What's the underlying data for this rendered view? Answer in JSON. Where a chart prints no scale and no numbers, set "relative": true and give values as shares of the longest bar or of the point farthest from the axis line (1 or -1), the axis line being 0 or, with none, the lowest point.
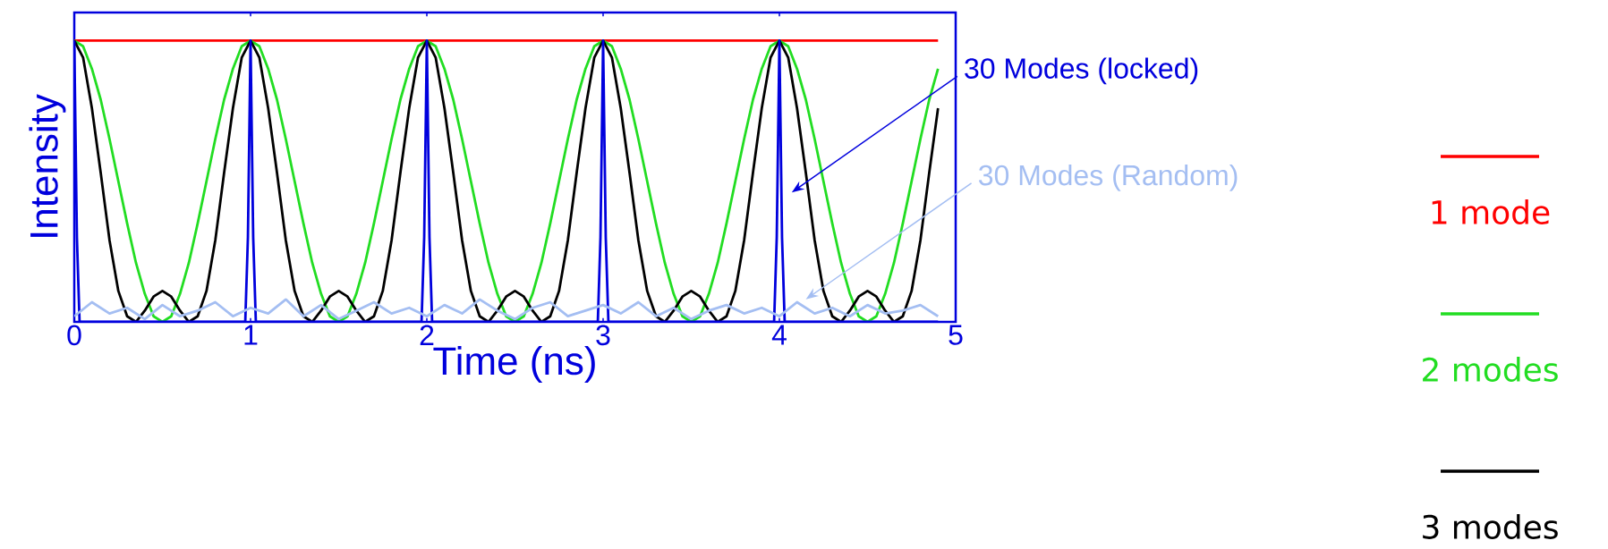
{
  "chart_data": {
    "type": "line",
    "xlabel": "Time (ns)",
    "ylabel": "Intensity",
    "relative": true,
    "xlim": [
      0,
      5
    ],
    "xticks": [
      0,
      1,
      2,
      3,
      4,
      5
    ],
    "legend": "right",
    "x": [
      0,
      0.05,
      0.1,
      0.15,
      0.2,
      0.25,
      0.3,
      0.35,
      0.4,
      0.45,
      0.5,
      0.55,
      0.6,
      0.65,
      0.7,
      0.75,
      0.8,
      0.85,
      0.9,
      0.95,
      1,
      1.05,
      1.1,
      1.15,
      1.2,
      1.25,
      1.3,
      1.35,
      1.4,
      1.45,
      1.5,
      1.55,
      1.6,
      1.65,
      1.7,
      1.75,
      1.8,
      1.85,
      1.9,
      1.95,
      2,
      2.05,
      2.1,
      2.15,
      2.2,
      2.25,
      2.3,
      2.35,
      2.4,
      2.45,
      2.5,
      2.55,
      2.6,
      2.65,
      2.7,
      2.75,
      2.8,
      2.85,
      2.9,
      2.95,
      3,
      3.05,
      3.1,
      3.15,
      3.2,
      3.25,
      3.3,
      3.35,
      3.4,
      3.45,
      3.5,
      3.55,
      3.6,
      3.65,
      3.7,
      3.75,
      3.8,
      3.85,
      3.9,
      3.95,
      4,
      4.05,
      4.1,
      4.15,
      4.2,
      4.25,
      4.3,
      4.35,
      4.4,
      4.45,
      4.5,
      4.55,
      4.6,
      4.65,
      4.7,
      4.75,
      4.8,
      4.85,
      4.9
    ],
    "series": [
      {
        "name": "1 mode",
        "color": "#ff0000",
        "x": [
          0,
          4.9
        ],
        "values": [
          1,
          1
        ]
      },
      {
        "name": "2 modes",
        "color": "#22dd22",
        "values": [
          1,
          0.98,
          0.9,
          0.79,
          0.65,
          0.5,
          0.35,
          0.21,
          0.1,
          0.02,
          0,
          0.02,
          0.1,
          0.21,
          0.35,
          0.5,
          0.65,
          0.79,
          0.9,
          0.98,
          1,
          0.98,
          0.9,
          0.79,
          0.65,
          0.5,
          0.35,
          0.21,
          0.1,
          0.02,
          0,
          0.02,
          0.1,
          0.21,
          0.35,
          0.5,
          0.65,
          0.79,
          0.9,
          0.98,
          1,
          0.98,
          0.9,
          0.79,
          0.65,
          0.5,
          0.35,
          0.21,
          0.1,
          0.02,
          0,
          0.02,
          0.1,
          0.21,
          0.35,
          0.5,
          0.65,
          0.79,
          0.9,
          0.98,
          1,
          0.98,
          0.9,
          0.79,
          0.65,
          0.5,
          0.35,
          0.21,
          0.1,
          0.02,
          0,
          0.02,
          0.1,
          0.21,
          0.35,
          0.5,
          0.65,
          0.79,
          0.9,
          0.98,
          1,
          0.98,
          0.9,
          0.79,
          0.65,
          0.5,
          0.35,
          0.21,
          0.1,
          0.02,
          0,
          0.02,
          0.1,
          0.21,
          0.35,
          0.5,
          0.65,
          0.79,
          0.9
        ]
      },
      {
        "name": "3 modes",
        "color": "#000000",
        "values": [
          1,
          0.94,
          0.76,
          0.53,
          0.29,
          0.11,
          0.02,
          0,
          0.04,
          0.09,
          0.11,
          0.09,
          0.04,
          0,
          0.02,
          0.11,
          0.29,
          0.53,
          0.76,
          0.94,
          1,
          0.94,
          0.76,
          0.53,
          0.29,
          0.11,
          0.02,
          0,
          0.04,
          0.09,
          0.11,
          0.09,
          0.04,
          0,
          0.02,
          0.11,
          0.29,
          0.53,
          0.76,
          0.94,
          1,
          0.94,
          0.76,
          0.53,
          0.29,
          0.11,
          0.02,
          0,
          0.04,
          0.09,
          0.11,
          0.09,
          0.04,
          0,
          0.02,
          0.11,
          0.29,
          0.53,
          0.76,
          0.94,
          1,
          0.94,
          0.76,
          0.53,
          0.29,
          0.11,
          0.02,
          0,
          0.04,
          0.09,
          0.11,
          0.09,
          0.04,
          0,
          0.02,
          0.11,
          0.29,
          0.53,
          0.76,
          0.94,
          1,
          0.94,
          0.76,
          0.53,
          0.29,
          0.11,
          0.02,
          0,
          0.04,
          0.09,
          0.11,
          0.09,
          0.04,
          0,
          0.02,
          0.11,
          0.29,
          0.53,
          0.76
        ]
      },
      {
        "color": "#0000dd",
        "x": [
          0,
          0.015,
          0.03,
          0.5,
          0.97,
          0.985,
          1,
          1.015,
          1.03,
          1.5,
          1.97,
          1.985,
          2,
          2.015,
          2.03,
          2.5,
          2.97,
          2.985,
          3,
          3.015,
          3.03,
          3.5,
          3.97,
          3.985,
          4,
          4.015,
          4.03,
          4.5,
          4.9
        ],
        "values": [
          1,
          0.3,
          0,
          0,
          0,
          0.3,
          1,
          0.3,
          0,
          0,
          0,
          0.3,
          1,
          0.3,
          0,
          0,
          0,
          0.3,
          1,
          0.3,
          0,
          0,
          0,
          0.3,
          1,
          0.3,
          0,
          0,
          0
        ]
      },
      {
        "color": "#a4bef2",
        "x": [
          0,
          0.1,
          0.2,
          0.3,
          0.4,
          0.5,
          0.6,
          0.7,
          0.8,
          0.9,
          1,
          1.1,
          1.2,
          1.3,
          1.4,
          1.5,
          1.6,
          1.7,
          1.8,
          1.9,
          2,
          2.1,
          2.2,
          2.3,
          2.4,
          2.5,
          2.6,
          2.7,
          2.8,
          2.9,
          3,
          3.1,
          3.2,
          3.3,
          3.4,
          3.5,
          3.6,
          3.7,
          3.8,
          3.9,
          4,
          4.1,
          4.2,
          4.3,
          4.4,
          4.5,
          4.6,
          4.7,
          4.8,
          4.9
        ],
        "values": [
          0.02,
          0.07,
          0.03,
          0.05,
          0.01,
          0.06,
          0.02,
          0.04,
          0.07,
          0.02,
          0.05,
          0.03,
          0.08,
          0.02,
          0.06,
          0.01,
          0.04,
          0.07,
          0.03,
          0.05,
          0.02,
          0.06,
          0.03,
          0.08,
          0.04,
          0.01,
          0.05,
          0.07,
          0.02,
          0.04,
          0.06,
          0.03,
          0.07,
          0.02,
          0.05,
          0.01,
          0.04,
          0.06,
          0.03,
          0.05,
          0.02,
          0.07,
          0.03,
          0.05,
          0.02,
          0.06,
          0.03,
          0.04,
          0.06,
          0.02
        ]
      }
    ],
    "annotations": [
      "30 Modes (locked)",
      "30 Modes (Random)"
    ]
  }
}
